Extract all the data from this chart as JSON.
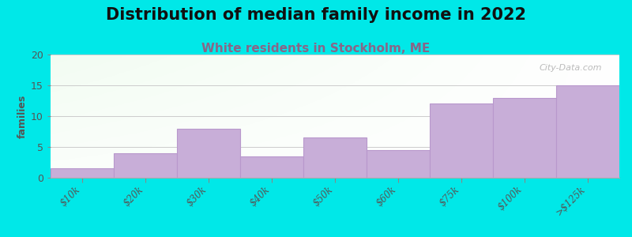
{
  "title": "Distribution of median family income in 2022",
  "subtitle": "White residents in Stockholm, ME",
  "categories": [
    "$10k",
    "$20k",
    "$30k",
    "$40k",
    "$50k",
    "$60k",
    "$75k",
    "$100k",
    ">$125k"
  ],
  "values": [
    1.5,
    4.0,
    8.0,
    3.5,
    6.5,
    4.5,
    12.0,
    13.0,
    15.0
  ],
  "bar_color": "#c8aed8",
  "bar_edge_color": "#b898cc",
  "ylabel": "families",
  "ylim": [
    0,
    20
  ],
  "yticks": [
    0,
    5,
    10,
    15,
    20
  ],
  "background_color": "#00e8e8",
  "plot_bg_color_topleft": "#d8efd8",
  "plot_bg_color_topright": "#f8f8f8",
  "plot_bg_color_bottomleft": "#eef8ee",
  "plot_bg_color_bottomright": "#ffffff",
  "title_fontsize": 15,
  "subtitle_fontsize": 11,
  "subtitle_color": "#886688",
  "watermark": "City-Data.com"
}
